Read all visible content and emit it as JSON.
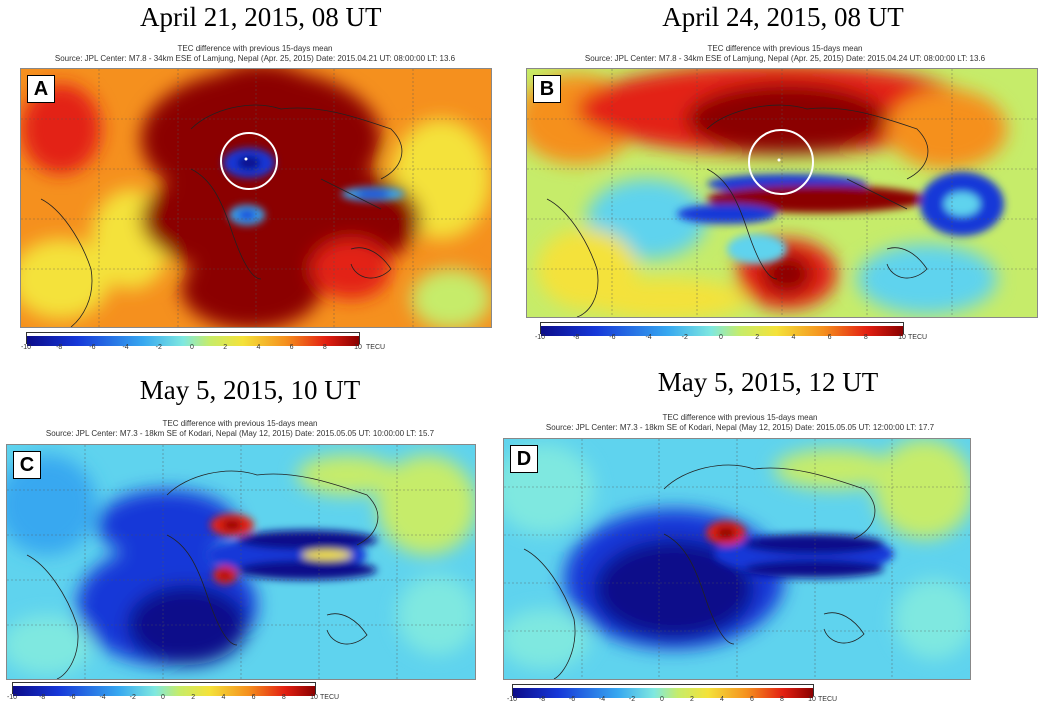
{
  "colors": {
    "dark_red": "#8b0000",
    "red": "#e32012",
    "orange": "#f5901e",
    "yellow": "#f4e23a",
    "cyan": "#5fd3ee",
    "blue": "#1654d8",
    "dark_blue": "#0c0c8a"
  },
  "colorbar": {
    "ticks_a": [
      "-10",
      "-8",
      "-6",
      "-4",
      "-2",
      "0",
      "2",
      "4",
      "6",
      "8",
      "10"
    ],
    "ticks_b": [
      "-10",
      "-8",
      "-6",
      "-4",
      "-2",
      "0",
      "2",
      "4",
      "6",
      "8",
      "10"
    ],
    "ticks_c": [
      "-10",
      "-8",
      "-6",
      "-4",
      "-2",
      "0",
      "2",
      "4",
      "6",
      "8",
      "10"
    ],
    "ticks_d": [
      "-10",
      "-8",
      "-6",
      "-4",
      "-2",
      "0",
      "2",
      "4",
      "6",
      "8",
      "10"
    ],
    "unit": "TECU"
  },
  "panels": [
    {
      "letter": "A",
      "title": "April 21, 2015, 08 UT",
      "header1": "TEC difference with previous 15-days mean",
      "header2": "Source: JPL    Center: M7.8 - 34km ESE of Lamjung, Nepal (Apr. 25, 2015)    Date: 2015.04.21    UT: 08:00:00    LT: 13.6"
    },
    {
      "letter": "B",
      "title": "April 24, 2015, 08 UT",
      "header1": "TEC difference with previous 15-days mean",
      "header2": "Source: JPL    Center: M7.8 - 34km ESE of Lamjung, Nepal (Apr. 25, 2015)    Date: 2015.04.24    UT: 08:00:00    LT: 13.6"
    },
    {
      "letter": "C",
      "title": "May 5, 2015, 10 UT",
      "header1": "TEC difference with previous 15-days mean",
      "header2": "Source: JPL    Center: M7.3 - 18km SE of Kodari, Nepal (May 12, 2015)    Date: 2015.05.05    UT: 10:00:00    LT: 15.7"
    },
    {
      "letter": "D",
      "title": "May 5, 2015, 12 UT",
      "header1": "TEC difference with previous 15-days mean",
      "header2": "Source: JPL    Center: M7.3 - 18km SE of Kodari, Nepal (May 12, 2015)    Date: 2015.05.05    UT: 12:00:00    LT: 17.7"
    }
  ]
}
